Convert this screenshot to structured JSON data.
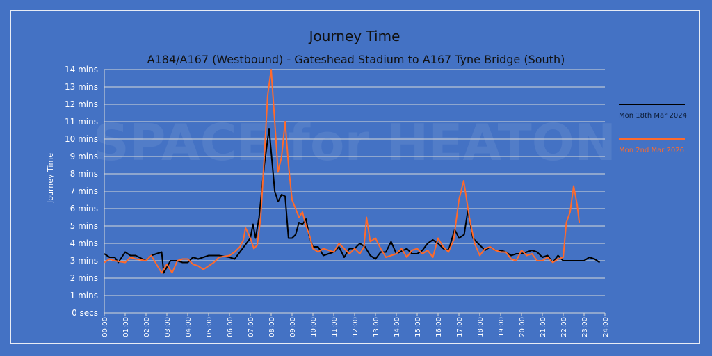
{
  "chart_data": {
    "type": "line",
    "title": "Journey Time",
    "subtitle": "A184/A167 (Westbound) - Gateshead Stadium to A167 Tyne Bridge (South)",
    "ylabel": "Journey Time",
    "xlabel": "",
    "watermark": "SPACE for HEATON",
    "xlim": [
      0,
      24
    ],
    "ylim": [
      0,
      14
    ],
    "grid": true,
    "legend_position": "right",
    "x_unit": "hours",
    "x_ticks": [
      "00:00",
      "01:00",
      "02:00",
      "03:00",
      "04:00",
      "05:00",
      "06:00",
      "07:00",
      "08:00",
      "09:00",
      "10:00",
      "11:00",
      "12:00",
      "13:00",
      "14:00",
      "15:00",
      "16:00",
      "17:00",
      "18:00",
      "19:00",
      "20:00",
      "21:00",
      "22:00",
      "23:00",
      "24:00"
    ],
    "y_ticks": [
      "0 secs",
      "1 mins",
      "2 mins",
      "3 mins",
      "4 mins",
      "5 mins",
      "6 mins",
      "7 mins",
      "8 mins",
      "9 mins",
      "10 mins",
      "11 mins",
      "12 mins",
      "13 mins",
      "14 mins"
    ],
    "series": [
      {
        "name": "Mon 18th Mar 2024",
        "color": "#000000",
        "x": [
          0,
          0.25,
          0.5,
          0.67,
          1,
          1.25,
          1.5,
          2,
          2.25,
          2.75,
          2.85,
          3.17,
          3.5,
          3.75,
          4,
          4.25,
          4.5,
          5,
          5.5,
          6,
          6.25,
          6.5,
          6.75,
          7,
          7.13,
          7.25,
          7.42,
          7.67,
          7.9,
          8.17,
          8.33,
          8.5,
          8.67,
          8.83,
          9,
          9.17,
          9.33,
          9.5,
          9.67,
          9.83,
          10,
          10.25,
          10.5,
          11,
          11.25,
          11.5,
          11.75,
          12,
          12.25,
          12.5,
          12.75,
          13,
          13.25,
          13.5,
          13.75,
          14,
          14.5,
          14.75,
          15,
          15.25,
          15.5,
          15.75,
          16,
          16.25,
          16.5,
          16.8,
          17,
          17.25,
          17.43,
          17.67,
          18,
          18.25,
          18.5,
          18.75,
          19,
          19.25,
          19.5,
          19.75,
          20,
          20.25,
          20.5,
          20.75,
          21,
          21.25,
          21.5,
          21.75,
          22,
          22.5,
          23,
          23.25,
          23.5,
          23.75
        ],
        "values": [
          3.4,
          3.2,
          3.2,
          2.9,
          3.5,
          3.3,
          3.3,
          3.0,
          3.3,
          3.5,
          2.3,
          3.0,
          3.0,
          2.9,
          2.9,
          3.2,
          3.1,
          3.3,
          3.3,
          3.2,
          3.1,
          3.5,
          3.9,
          4.3,
          5.1,
          4.3,
          5.5,
          8.5,
          10.6,
          7.0,
          6.4,
          6.8,
          6.7,
          4.3,
          4.3,
          4.5,
          5.2,
          5.1,
          5.4,
          4.4,
          3.8,
          3.8,
          3.3,
          3.5,
          3.8,
          3.2,
          3.7,
          3.7,
          4.0,
          3.8,
          3.3,
          3.1,
          3.5,
          3.5,
          4.1,
          3.4,
          3.7,
          3.4,
          3.4,
          3.6,
          4.0,
          4.2,
          4.0,
          3.7,
          3.6,
          4.8,
          4.3,
          4.5,
          5.9,
          4.3,
          3.9,
          3.6,
          3.8,
          3.6,
          3.6,
          3.5,
          3.3,
          3.4,
          3.4,
          3.5,
          3.6,
          3.5,
          3.2,
          3.3,
          2.9,
          3.3,
          3.0,
          3.0,
          3.0,
          3.2,
          3.1,
          2.9
        ]
      },
      {
        "name": "Mon 2nd Mar 2026",
        "color": "#ff6a2b",
        "x": [
          0,
          0.25,
          0.5,
          1,
          1.25,
          1.5,
          2,
          2.25,
          2.5,
          2.75,
          3,
          3.25,
          3.5,
          3.75,
          4,
          4.25,
          4.5,
          4.75,
          5,
          5.25,
          5.5,
          6,
          6.25,
          6.5,
          6.67,
          6.77,
          7,
          7.17,
          7.33,
          7.5,
          7.67,
          7.83,
          8,
          8.17,
          8.33,
          8.5,
          8.67,
          8.83,
          9,
          9.17,
          9.33,
          9.5,
          9.67,
          9.83,
          10,
          10.25,
          10.5,
          11,
          11.25,
          11.5,
          11.75,
          12,
          12.25,
          12.45,
          12.57,
          12.75,
          13,
          13.25,
          13.5,
          14,
          14.25,
          14.5,
          14.75,
          15,
          15.25,
          15.5,
          15.75,
          16,
          16.25,
          16.5,
          16.75,
          17,
          17.23,
          17.5,
          17.75,
          18,
          18.25,
          18.5,
          18.75,
          19,
          19.25,
          19.5,
          19.75,
          20,
          20.25,
          20.5,
          20.75,
          21,
          21.25,
          21.5,
          21.75,
          22,
          22.15,
          22.33,
          22.5,
          22.67,
          22.77
        ],
        "values": [
          2.9,
          3.1,
          3.0,
          2.9,
          3.2,
          3.1,
          3.0,
          3.3,
          2.8,
          2.3,
          2.8,
          2.3,
          3.0,
          3.1,
          3.1,
          2.8,
          2.7,
          2.5,
          2.7,
          2.9,
          3.2,
          3.3,
          3.5,
          3.8,
          4.2,
          4.9,
          4.3,
          3.7,
          3.9,
          5.5,
          9.0,
          12.5,
          14.0,
          11.0,
          8.1,
          9.0,
          11.0,
          8.5,
          6.5,
          6.0,
          5.5,
          5.8,
          5.0,
          4.5,
          3.7,
          3.5,
          3.7,
          3.5,
          4.0,
          3.7,
          3.4,
          3.7,
          3.4,
          3.8,
          5.5,
          4.1,
          4.3,
          3.7,
          3.2,
          3.4,
          3.7,
          3.2,
          3.6,
          3.7,
          3.4,
          3.6,
          3.2,
          4.3,
          3.8,
          3.5,
          4.2,
          6.5,
          7.6,
          5.5,
          4.0,
          3.3,
          3.7,
          3.8,
          3.6,
          3.5,
          3.5,
          3.1,
          3.0,
          3.6,
          3.3,
          3.4,
          3.0,
          3.0,
          3.2,
          2.9,
          3.1,
          3.2,
          5.2,
          5.8,
          7.3,
          6.2,
          5.2
        ]
      }
    ]
  }
}
